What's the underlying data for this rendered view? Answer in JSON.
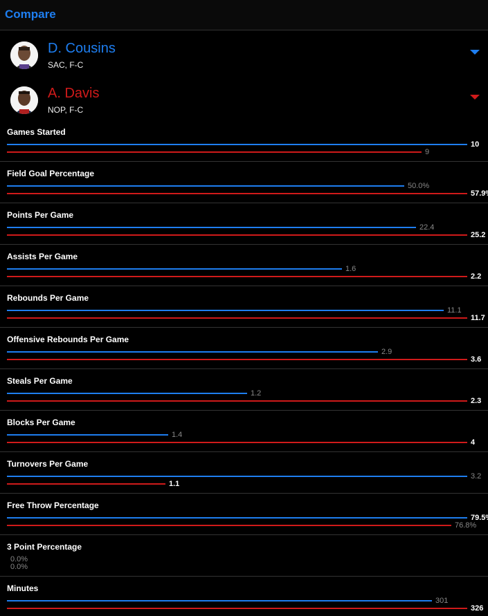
{
  "header": {
    "title": "Compare"
  },
  "players": [
    {
      "name": "D. Cousins",
      "team": "SAC, F-C",
      "color": "#1e7ef0"
    },
    {
      "name": "A. Davis",
      "team": "NOP, F-C",
      "color": "#d01a1a"
    }
  ],
  "stats": [
    {
      "label": "Games Started",
      "p1": "10",
      "p2": "9",
      "p1_frac": 1.0,
      "p2_frac": 0.9,
      "winner": 1
    },
    {
      "label": "Field Goal Percentage",
      "p1": "50.0%",
      "p2": "57.9%",
      "p1_frac": 0.8636,
      "p2_frac": 1.0,
      "winner": 2
    },
    {
      "label": "Points Per Game",
      "p1": "22.4",
      "p2": "25.2",
      "p1_frac": 0.8889,
      "p2_frac": 1.0,
      "winner": 2
    },
    {
      "label": "Assists Per Game",
      "p1": "1.6",
      "p2": "2.2",
      "p1_frac": 0.7273,
      "p2_frac": 1.0,
      "winner": 2
    },
    {
      "label": "Rebounds Per Game",
      "p1": "11.1",
      "p2": "11.7",
      "p1_frac": 0.9487,
      "p2_frac": 1.0,
      "winner": 2
    },
    {
      "label": "Offensive Rebounds Per Game",
      "p1": "2.9",
      "p2": "3.6",
      "p1_frac": 0.8056,
      "p2_frac": 1.0,
      "winner": 2
    },
    {
      "label": "Steals Per Game",
      "p1": "1.2",
      "p2": "2.3",
      "p1_frac": 0.5217,
      "p2_frac": 1.0,
      "winner": 2
    },
    {
      "label": "Blocks Per Game",
      "p1": "1.4",
      "p2": "4",
      "p1_frac": 0.35,
      "p2_frac": 1.0,
      "winner": 2
    },
    {
      "label": "Turnovers Per Game",
      "p1": "3.2",
      "p2": "1.1",
      "p1_frac": 1.0,
      "p2_frac": 0.3438,
      "winner": 2
    },
    {
      "label": "Free Throw Percentage",
      "p1": "79.5%",
      "p2": "76.8%",
      "p1_frac": 1.0,
      "p2_frac": 0.966,
      "winner": 1
    },
    {
      "label": "3 Point Percentage",
      "p1": "0.0%",
      "p2": "0.0%",
      "p1_frac": 0,
      "p2_frac": 0,
      "winner": 0
    },
    {
      "label": "Minutes",
      "p1": "301",
      "p2": "326",
      "p1_frac": 0.9233,
      "p2_frac": 1.0,
      "winner": 2
    }
  ]
}
